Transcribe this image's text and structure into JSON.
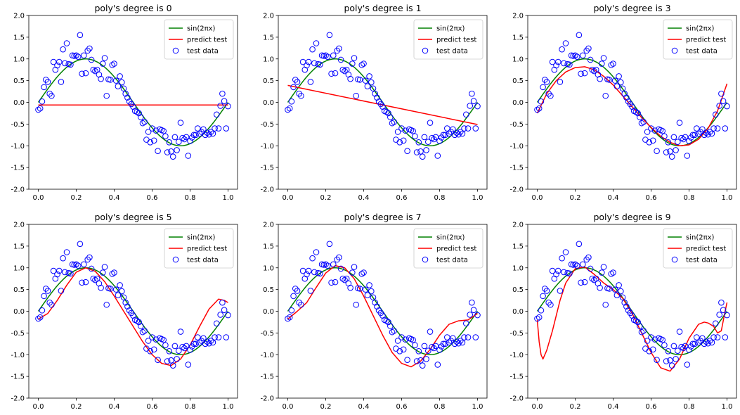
{
  "colors": {
    "truth": "#008000",
    "predict": "#ff0000",
    "test_data": "#0000ff",
    "axes": "#000000",
    "background": "#ffffff"
  },
  "legend": {
    "entries": [
      "sin(2πx)",
      "predict test",
      "test data"
    ],
    "placement": "top-right"
  },
  "chart_data": [
    {
      "type": "line",
      "title": "poly's degree is 0",
      "xlim": [
        -0.05,
        1.05
      ],
      "ylim": [
        -2.0,
        2.0
      ],
      "xticks": [
        0.0,
        0.2,
        0.4,
        0.6,
        0.8,
        1.0
      ],
      "yticks": [
        -2.0,
        -1.5,
        -1.0,
        -0.5,
        0.0,
        0.5,
        1.0,
        1.5,
        2.0
      ],
      "grid": false,
      "series": [
        {
          "name": "sin(2πx)",
          "kind": "line",
          "color": "#008000",
          "x": [
            0.0,
            1.0
          ],
          "y": [
            0.0,
            0.0
          ]
        },
        {
          "name": "predict test",
          "kind": "line",
          "color": "#ff0000",
          "x": [
            0.0,
            1.0
          ],
          "y": [
            -0.06,
            -0.06
          ]
        },
        {
          "name": "test data",
          "kind": "scatter",
          "color": "#0000ff",
          "x": [],
          "y": []
        }
      ]
    },
    {
      "type": "line",
      "title": "poly's degree is 1",
      "xlim": [
        -0.05,
        1.05
      ],
      "ylim": [
        -2.0,
        2.0
      ],
      "xticks": [
        0.0,
        0.2,
        0.4,
        0.6,
        0.8,
        1.0
      ],
      "yticks": [
        -2.0,
        -1.5,
        -1.0,
        -0.5,
        0.0,
        0.5,
        1.0,
        1.5,
        2.0
      ],
      "grid": false,
      "series": [
        {
          "name": "sin(2πx)",
          "kind": "line",
          "color": "#008000",
          "x": [
            0.0,
            1.0
          ],
          "y": [
            0.0,
            0.0
          ]
        },
        {
          "name": "predict test",
          "kind": "line",
          "color": "#ff0000",
          "x": [
            0.0,
            1.0
          ],
          "y": [
            0.39,
            -0.51
          ]
        },
        {
          "name": "test data",
          "kind": "scatter",
          "color": "#0000ff",
          "x": [],
          "y": []
        }
      ]
    },
    {
      "type": "line",
      "title": "poly's degree is 3",
      "xlim": [
        -0.05,
        1.05
      ],
      "ylim": [
        -2.0,
        2.0
      ],
      "xticks": [
        0.0,
        0.2,
        0.4,
        0.6,
        0.8,
        1.0
      ],
      "yticks": [
        -2.0,
        -1.5,
        -1.0,
        -0.5,
        0.0,
        0.5,
        1.0,
        1.5,
        2.0
      ],
      "grid": false,
      "series": [
        {
          "name": "sin(2πx)",
          "kind": "line",
          "color": "#008000",
          "x": [
            0.0,
            1.0
          ],
          "y": [
            0.0,
            0.0
          ]
        },
        {
          "name": "predict test",
          "kind": "line",
          "color": "#ff0000",
          "x": [
            0.0,
            0.05,
            0.1,
            0.15,
            0.2,
            0.25,
            0.3,
            0.35,
            0.4,
            0.45,
            0.5,
            0.55,
            0.6,
            0.65,
            0.7,
            0.75,
            0.8,
            0.85,
            0.9,
            0.95,
            1.0
          ],
          "y": [
            -0.25,
            0.2,
            0.5,
            0.7,
            0.8,
            0.82,
            0.75,
            0.6,
            0.4,
            0.15,
            -0.1,
            -0.35,
            -0.58,
            -0.78,
            -0.92,
            -1.0,
            -0.98,
            -0.85,
            -0.6,
            -0.2,
            0.43
          ]
        },
        {
          "name": "test data",
          "kind": "scatter",
          "color": "#0000ff",
          "x": [],
          "y": []
        }
      ]
    },
    {
      "type": "line",
      "title": "poly's degree is 5",
      "xlim": [
        -0.05,
        1.05
      ],
      "ylim": [
        -2.0,
        2.0
      ],
      "xticks": [
        0.0,
        0.2,
        0.4,
        0.6,
        0.8,
        1.0
      ],
      "yticks": [
        -2.0,
        -1.5,
        -1.0,
        -0.5,
        0.0,
        0.5,
        1.0,
        1.5,
        2.0
      ],
      "grid": false,
      "series": [
        {
          "name": "sin(2πx)",
          "kind": "line",
          "color": "#008000",
          "x": [
            0.0,
            1.0
          ],
          "y": [
            0.0,
            0.0
          ]
        },
        {
          "name": "predict test",
          "kind": "line",
          "color": "#ff0000",
          "x": [
            0.0,
            0.05,
            0.1,
            0.15,
            0.2,
            0.25,
            0.3,
            0.35,
            0.4,
            0.45,
            0.5,
            0.55,
            0.6,
            0.65,
            0.7,
            0.75,
            0.8,
            0.85,
            0.9,
            0.95,
            0.98,
            1.0
          ],
          "y": [
            -0.18,
            -0.05,
            0.25,
            0.6,
            0.9,
            1.0,
            0.92,
            0.68,
            0.35,
            0.0,
            -0.35,
            -0.7,
            -1.0,
            -1.2,
            -1.25,
            -1.1,
            -0.78,
            -0.35,
            0.05,
            0.28,
            0.25,
            0.2
          ]
        },
        {
          "name": "test data",
          "kind": "scatter",
          "color": "#0000ff",
          "x": [],
          "y": []
        }
      ]
    },
    {
      "type": "line",
      "title": "poly's degree is 7",
      "xlim": [
        -0.05,
        1.05
      ],
      "ylim": [
        -2.0,
        2.0
      ],
      "xticks": [
        0.0,
        0.2,
        0.4,
        0.6,
        0.8,
        1.0
      ],
      "yticks": [
        -2.0,
        -1.5,
        -1.0,
        -0.5,
        0.0,
        0.5,
        1.0,
        1.5,
        2.0
      ],
      "grid": false,
      "series": [
        {
          "name": "sin(2πx)",
          "kind": "line",
          "color": "#008000",
          "x": [
            0.0,
            1.0
          ],
          "y": [
            0.0,
            0.0
          ]
        },
        {
          "name": "predict test",
          "kind": "line",
          "color": "#ff0000",
          "x": [
            0.0,
            0.05,
            0.1,
            0.15,
            0.2,
            0.25,
            0.3,
            0.35,
            0.4,
            0.45,
            0.5,
            0.55,
            0.6,
            0.65,
            0.7,
            0.75,
            0.8,
            0.85,
            0.9,
            0.95,
            1.0
          ],
          "y": [
            -0.18,
            0.0,
            0.2,
            0.55,
            0.88,
            1.05,
            1.0,
            0.75,
            0.35,
            -0.1,
            -0.55,
            -0.95,
            -1.2,
            -1.28,
            -1.15,
            -0.88,
            -0.55,
            -0.3,
            -0.22,
            -0.2,
            -0.05
          ]
        },
        {
          "name": "test data",
          "kind": "scatter",
          "color": "#0000ff",
          "x": [],
          "y": []
        }
      ]
    },
    {
      "type": "line",
      "title": "poly's degree is 9",
      "xlim": [
        -0.05,
        1.05
      ],
      "ylim": [
        -2.0,
        2.0
      ],
      "xticks": [
        0.0,
        0.2,
        0.4,
        0.6,
        0.8,
        1.0
      ],
      "yticks": [
        -2.0,
        -1.5,
        -1.0,
        -0.5,
        0.0,
        0.5,
        1.0,
        1.5,
        2.0
      ],
      "grid": false,
      "series": [
        {
          "name": "sin(2πx)",
          "kind": "line",
          "color": "#008000",
          "x": [
            0.0,
            1.0
          ],
          "y": [
            0.0,
            0.0
          ]
        },
        {
          "name": "predict test",
          "kind": "line",
          "color": "#ff0000",
          "x": [
            0.0,
            0.01,
            0.02,
            0.03,
            0.05,
            0.08,
            0.1,
            0.12,
            0.15,
            0.2,
            0.25,
            0.3,
            0.35,
            0.4,
            0.45,
            0.5,
            0.55,
            0.6,
            0.65,
            0.7,
            0.75,
            0.8,
            0.85,
            0.88,
            0.9,
            0.93,
            0.95,
            0.97,
            0.99,
            1.0
          ],
          "y": [
            -0.2,
            -0.7,
            -1.0,
            -1.1,
            -0.9,
            -0.45,
            -0.1,
            0.25,
            0.65,
            0.98,
            1.02,
            0.85,
            0.65,
            0.5,
            0.3,
            -0.05,
            -0.5,
            -0.95,
            -1.3,
            -1.38,
            -1.1,
            -0.62,
            -0.3,
            -0.25,
            -0.27,
            -0.35,
            -0.5,
            -0.45,
            0.0,
            0.2
          ]
        },
        {
          "name": "test data",
          "kind": "scatter",
          "color": "#0000ff",
          "x": [],
          "y": []
        }
      ]
    }
  ],
  "test_data": {
    "x": [
      0.0,
      0.01,
      0.02,
      0.03,
      0.04,
      0.05,
      0.06,
      0.07,
      0.08,
      0.09,
      0.1,
      0.11,
      0.12,
      0.13,
      0.14,
      0.15,
      0.16,
      0.17,
      0.18,
      0.19,
      0.2,
      0.21,
      0.22,
      0.23,
      0.24,
      0.25,
      0.26,
      0.27,
      0.28,
      0.29,
      0.3,
      0.31,
      0.32,
      0.33,
      0.34,
      0.35,
      0.36,
      0.37,
      0.38,
      0.39,
      0.4,
      0.41,
      0.42,
      0.43,
      0.44,
      0.45,
      0.46,
      0.47,
      0.48,
      0.49,
      0.5,
      0.51,
      0.52,
      0.53,
      0.54,
      0.55,
      0.56,
      0.57,
      0.58,
      0.59,
      0.6,
      0.61,
      0.62,
      0.63,
      0.64,
      0.65,
      0.66,
      0.67,
      0.68,
      0.69,
      0.7,
      0.71,
      0.72,
      0.73,
      0.74,
      0.75,
      0.76,
      0.77,
      0.78,
      0.79,
      0.8,
      0.81,
      0.82,
      0.83,
      0.84,
      0.85,
      0.86,
      0.87,
      0.88,
      0.89,
      0.9,
      0.91,
      0.92,
      0.93,
      0.94,
      0.95,
      0.96,
      0.97,
      0.98,
      0.99,
      1.0
    ],
    "y": [
      -0.17,
      -0.14,
      0.02,
      0.35,
      0.52,
      0.47,
      0.2,
      0.15,
      0.93,
      0.75,
      0.85,
      0.93,
      0.47,
      1.22,
      0.9,
      1.36,
      0.88,
      0.87,
      1.08,
      1.07,
      1.08,
      1.05,
      1.55,
      0.66,
      1.08,
      0.67,
      1.19,
      1.24,
      0.98,
      0.75,
      0.72,
      0.75,
      0.64,
      0.54,
      0.89,
      1.02,
      0.15,
      0.53,
      0.52,
      0.86,
      0.89,
      0.5,
      0.37,
      0.6,
      0.46,
      0.32,
      0.2,
      0.11,
      0.02,
      -0.04,
      -0.1,
      -0.2,
      -0.22,
      -0.25,
      -0.34,
      -0.48,
      -0.45,
      -0.86,
      -0.68,
      -0.92,
      -0.6,
      -0.88,
      -0.65,
      -1.12,
      -0.62,
      -0.64,
      -0.66,
      -0.78,
      -1.15,
      -0.92,
      -1.13,
      -1.25,
      -0.8,
      -1.1,
      -0.91,
      -0.47,
      -0.82,
      -0.85,
      -0.8,
      -1.23,
      -0.89,
      -0.81,
      -0.75,
      -0.75,
      -0.6,
      -0.72,
      -0.68,
      -0.62,
      -0.75,
      -0.7,
      -0.74,
      -0.68,
      -0.72,
      -0.6,
      -0.28,
      -0.6,
      -0.08,
      0.2,
      0.03,
      -0.6,
      -0.09
    ]
  }
}
